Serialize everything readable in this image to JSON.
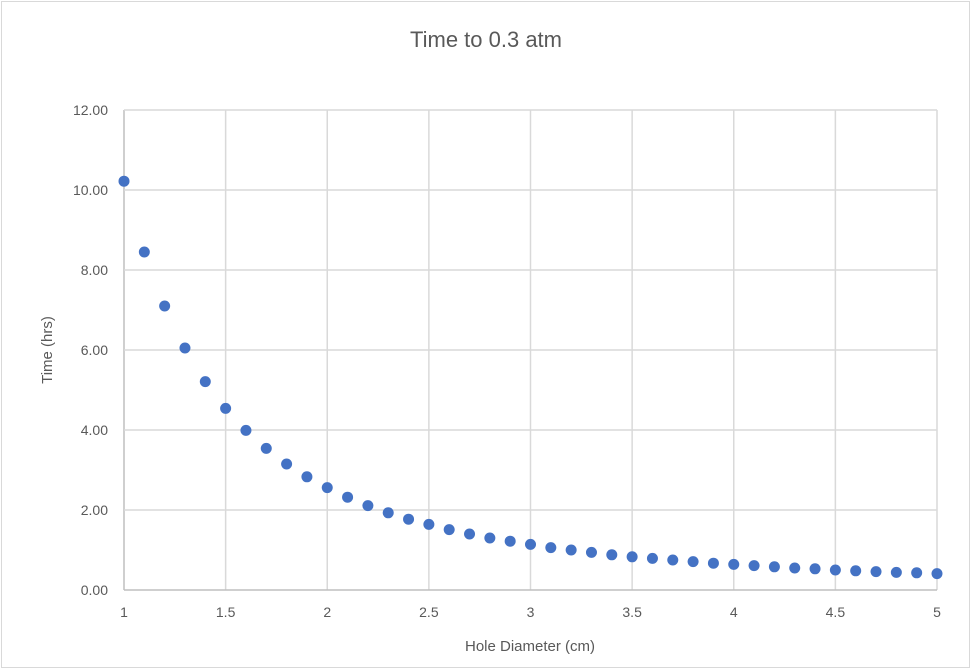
{
  "chart_data": {
    "type": "scatter",
    "title": "Time to 0.3 atm",
    "xlabel": "Hole Diameter (cm)",
    "ylabel": "Time (hrs)",
    "xlim": [
      1,
      5
    ],
    "ylim": [
      0,
      12
    ],
    "x_ticks": [
      "1",
      "1.5",
      "2",
      "2.5",
      "3",
      "3.5",
      "4",
      "4.5",
      "5"
    ],
    "x_tick_values": [
      1,
      1.5,
      2,
      2.5,
      3,
      3.5,
      4,
      4.5,
      5
    ],
    "y_ticks": [
      "0.00",
      "2.00",
      "4.00",
      "6.00",
      "8.00",
      "10.00",
      "12.00"
    ],
    "y_tick_values": [
      0,
      2,
      4,
      6,
      8,
      10,
      12
    ],
    "grid": true,
    "legend": "none",
    "marker_color": "#4472C4",
    "x": [
      1.0,
      1.1,
      1.2,
      1.3,
      1.4,
      1.5,
      1.6,
      1.7,
      1.8,
      1.9,
      2.0,
      2.1,
      2.2,
      2.3,
      2.4,
      2.5,
      2.6,
      2.7,
      2.8,
      2.9,
      3.0,
      3.1,
      3.2,
      3.3,
      3.4,
      3.5,
      3.6,
      3.7,
      3.8,
      3.9,
      4.0,
      4.1,
      4.2,
      4.3,
      4.4,
      4.5,
      4.6,
      4.7,
      4.8,
      4.9,
      5.0
    ],
    "y": [
      10.22,
      8.45,
      7.1,
      6.05,
      5.21,
      4.54,
      3.99,
      3.54,
      3.15,
      2.83,
      2.56,
      2.32,
      2.11,
      1.93,
      1.77,
      1.64,
      1.51,
      1.4,
      1.3,
      1.22,
      1.14,
      1.06,
      1.0,
      0.94,
      0.88,
      0.83,
      0.79,
      0.75,
      0.71,
      0.67,
      0.64,
      0.61,
      0.58,
      0.55,
      0.53,
      0.5,
      0.48,
      0.46,
      0.44,
      0.43,
      0.41
    ]
  }
}
